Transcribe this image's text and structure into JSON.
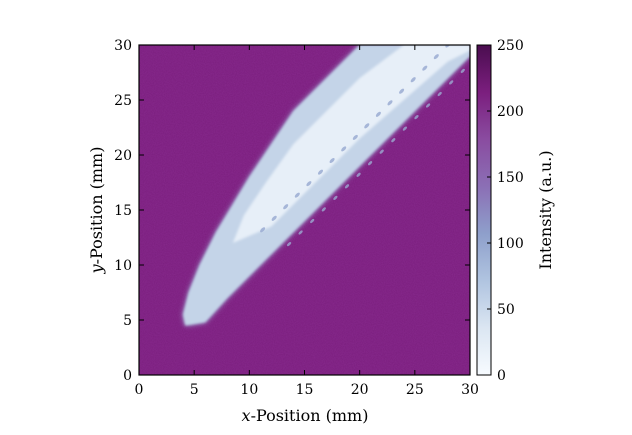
{
  "chart_data": {
    "type": "heatmap",
    "title": "",
    "xlabel_var": "x",
    "xlabel_rest": "-Position (mm)",
    "ylabel_var": "y",
    "ylabel_rest": "-Position (mm)",
    "xlim": [
      0,
      30
    ],
    "ylim": [
      0,
      30
    ],
    "xticks": [
      0,
      5,
      10,
      15,
      20,
      25,
      30
    ],
    "yticks": [
      0,
      5,
      10,
      15,
      20,
      25,
      30
    ],
    "background_intensity": 215,
    "object": {
      "description_free_intensity": 20,
      "outline": [
        [
          4.2,
          4.5
        ],
        [
          6.0,
          4.8
        ],
        [
          8.0,
          7.0
        ],
        [
          10.0,
          9.0
        ],
        [
          14.0,
          13.0
        ],
        [
          18.0,
          17.0
        ],
        [
          22.0,
          21.0
        ],
        [
          26.0,
          25.0
        ],
        [
          30.0,
          29.0
        ],
        [
          30.0,
          30.0
        ],
        [
          20.0,
          30.0
        ],
        [
          17.0,
          27.0
        ],
        [
          14.0,
          24.0
        ],
        [
          12.0,
          21.0
        ],
        [
          10.0,
          18.0
        ],
        [
          8.5,
          15.5
        ],
        [
          7.0,
          13.0
        ],
        [
          5.5,
          10.0
        ],
        [
          4.5,
          7.5
        ],
        [
          4.0,
          5.5
        ]
      ],
      "core_outline": [
        [
          8.5,
          12.0
        ],
        [
          12.0,
          13.5
        ],
        [
          16.0,
          17.5
        ],
        [
          20.0,
          21.5
        ],
        [
          24.0,
          25.0
        ],
        [
          28.0,
          28.5
        ],
        [
          30.0,
          29.5
        ],
        [
          30.0,
          30.0
        ],
        [
          24.0,
          30.0
        ],
        [
          20.0,
          27.0
        ],
        [
          17.0,
          24.0
        ],
        [
          14.0,
          21.0
        ],
        [
          11.5,
          17.5
        ],
        [
          9.5,
          14.5
        ]
      ]
    },
    "colorbar": {
      "label": "Intensity (a.u.)",
      "range": [
        0,
        250
      ],
      "ticks": [
        0,
        50,
        100,
        150,
        200,
        250
      ],
      "colormap": [
        "#f7fbff",
        "#dbe6f2",
        "#b0c4e0",
        "#8e9fcb",
        "#8b6fb5",
        "#8a4ca0",
        "#7b1e7e",
        "#4a0d4f"
      ]
    }
  }
}
